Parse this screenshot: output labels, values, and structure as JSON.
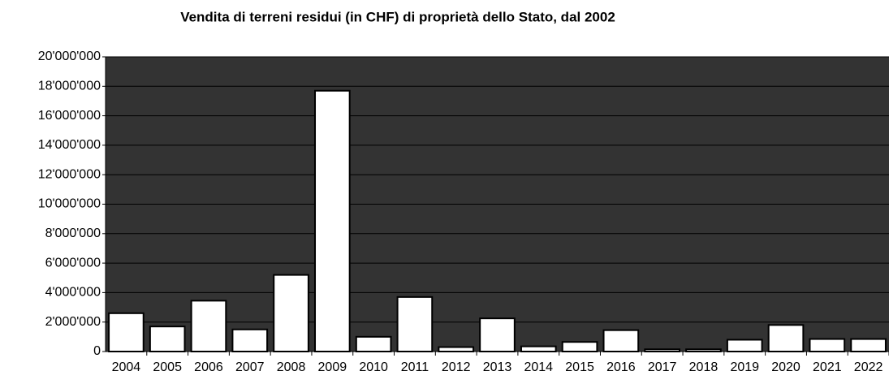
{
  "chart_data": {
    "type": "bar",
    "title": "Vendita di terreni residui (in CHF) di proprietà dello Stato, dal 2002",
    "categories": [
      "2004",
      "2005",
      "2006",
      "2007",
      "2008",
      "2009",
      "2010",
      "2011",
      "2012",
      "2013",
      "2014",
      "2015",
      "2016",
      "2017",
      "2018",
      "2019",
      "2020",
      "2021",
      "2022"
    ],
    "values": [
      2600000,
      1700000,
      3450000,
      1500000,
      5200000,
      17700000,
      1000000,
      3700000,
      300000,
      2250000,
      350000,
      650000,
      1450000,
      150000,
      150000,
      800000,
      1800000,
      850000,
      850000
    ],
    "color": "#ffffff",
    "ylim": [
      0,
      20000000
    ],
    "yticks": [
      0,
      {
        "value": 2000000,
        "label": "2'000'000"
      },
      {
        "value": 4000000,
        "label": "4'000'000"
      },
      {
        "value": 6000000,
        "label": "6'000'000"
      },
      {
        "value": 8000000,
        "label": "8'000'000"
      },
      {
        "value": 10000000,
        "label": "10'000'000"
      },
      {
        "value": 12000000,
        "label": "12'000'000"
      },
      {
        "value": 14000000,
        "label": "14'000'000"
      },
      {
        "value": 16000000,
        "label": "16'000'000"
      },
      {
        "value": 18000000,
        "label": "18'000'000"
      },
      {
        "value": 20000000,
        "label": "20'000'000"
      }
    ],
    "grid": true
  }
}
